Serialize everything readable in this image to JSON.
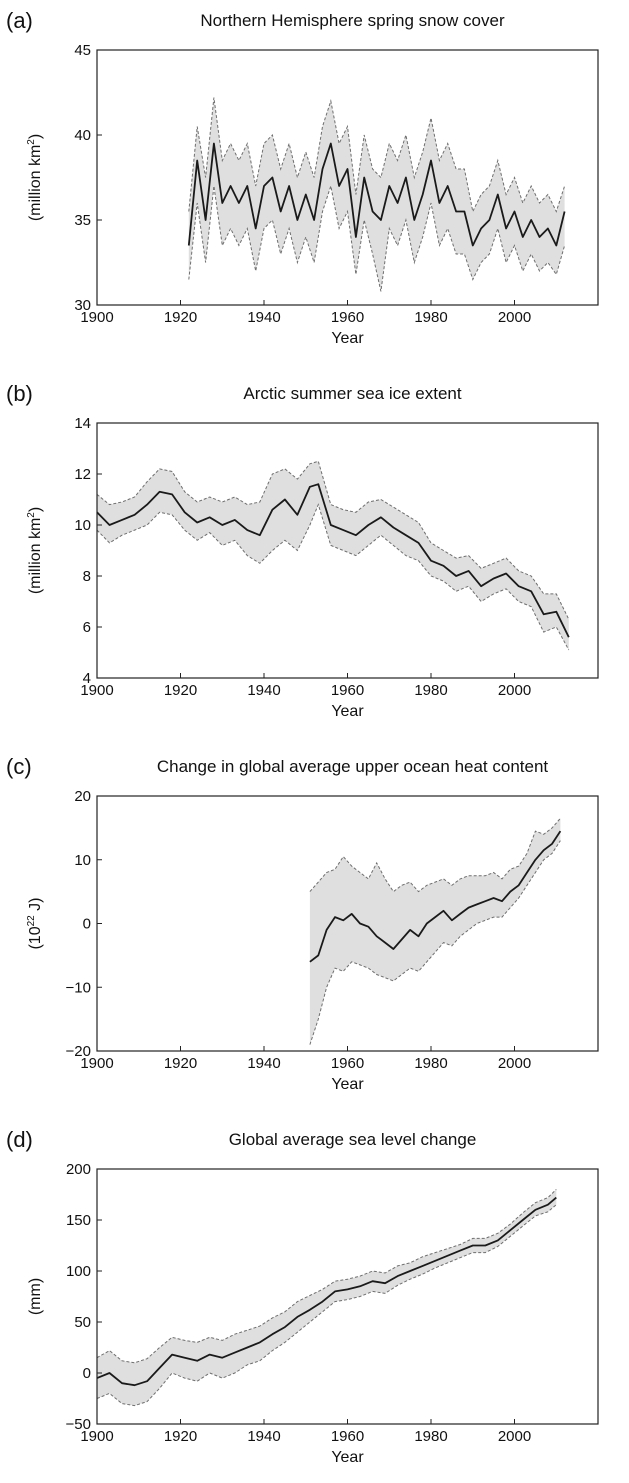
{
  "chart_data": [
    {
      "type": "line",
      "panel": "(a)",
      "title": "Northern Hemisphere spring snow cover",
      "xlabel": "Year",
      "ylabel": "(million km²)",
      "ylabel_base": "(million km",
      "ylabel_sup": "2",
      "ylabel_tail": ")",
      "xlim": [
        1900,
        2020
      ],
      "ylim": [
        30,
        45
      ],
      "xticks": [
        1900,
        1920,
        1940,
        1960,
        1980,
        2000
      ],
      "yticks": [
        30,
        35,
        40,
        45
      ],
      "grid": false,
      "series": [
        {
          "x": [
            1922,
            1924,
            1926,
            1928,
            1930,
            1932,
            1934,
            1936,
            1938,
            1940,
            1942,
            1944,
            1946,
            1948,
            1950,
            1952,
            1954,
            1956,
            1958,
            1960,
            1962,
            1964,
            1966,
            1968,
            1970,
            1972,
            1974,
            1976,
            1978,
            1980,
            1982,
            1984,
            1986,
            1988,
            1990,
            1992,
            1994,
            1996,
            1998,
            2000,
            2002,
            2004,
            2006,
            2008,
            2010,
            2012
          ],
          "y": [
            33.5,
            38.5,
            35.0,
            39.5,
            36.0,
            37.0,
            36.0,
            37.0,
            34.5,
            37.0,
            37.5,
            35.5,
            37.0,
            35.0,
            36.5,
            35.0,
            38.0,
            39.5,
            37.0,
            38.0,
            34.0,
            37.5,
            35.5,
            35.0,
            37.0,
            36.0,
            37.5,
            35.0,
            36.5,
            38.5,
            36.0,
            37.0,
            35.5,
            35.5,
            33.5,
            34.5,
            35.0,
            36.5,
            34.5,
            35.5,
            34.0,
            35.0,
            34.0,
            34.5,
            33.5,
            35.5
          ],
          "lower": [
            31.5,
            36.0,
            32.5,
            37.0,
            33.5,
            34.5,
            33.5,
            34.5,
            32.0,
            34.5,
            35.0,
            33.0,
            34.5,
            32.5,
            34.0,
            32.5,
            35.5,
            37.0,
            34.5,
            35.5,
            31.8,
            35.0,
            33.0,
            30.8,
            34.5,
            33.5,
            35.0,
            32.5,
            34.0,
            36.0,
            33.5,
            34.5,
            33.0,
            33.0,
            31.5,
            32.5,
            33.0,
            34.5,
            32.5,
            33.5,
            32.0,
            33.0,
            32.0,
            32.5,
            31.8,
            33.5
          ],
          "upper": [
            35.5,
            40.5,
            37.5,
            42.2,
            38.5,
            39.5,
            38.5,
            39.5,
            37.0,
            39.5,
            40.0,
            38.0,
            39.5,
            37.5,
            39.0,
            37.5,
            40.5,
            42.0,
            39.5,
            40.5,
            36.5,
            40.0,
            38.0,
            37.5,
            39.5,
            38.5,
            40.0,
            37.5,
            39.0,
            41.0,
            38.5,
            39.5,
            38.0,
            38.0,
            35.5,
            36.5,
            37.0,
            38.5,
            36.5,
            37.5,
            36.0,
            37.0,
            36.0,
            36.5,
            35.5,
            37.0
          ]
        }
      ]
    },
    {
      "type": "line",
      "panel": "(b)",
      "title": "Arctic summer sea ice extent",
      "xlabel": "Year",
      "ylabel": "(million km²)",
      "ylabel_base": "(million km",
      "ylabel_sup": "2",
      "ylabel_tail": ")",
      "xlim": [
        1900,
        2020
      ],
      "ylim": [
        4,
        14
      ],
      "xticks": [
        1900,
        1920,
        1940,
        1960,
        1980,
        2000
      ],
      "yticks": [
        4,
        6,
        8,
        10,
        12,
        14
      ],
      "grid": false,
      "series": [
        {
          "x": [
            1900,
            1903,
            1906,
            1909,
            1912,
            1915,
            1918,
            1921,
            1924,
            1927,
            1930,
            1933,
            1936,
            1939,
            1942,
            1945,
            1948,
            1951,
            1953,
            1956,
            1959,
            1962,
            1965,
            1968,
            1971,
            1974,
            1977,
            1980,
            1983,
            1986,
            1989,
            1992,
            1995,
            1998,
            2001,
            2004,
            2007,
            2010,
            2013
          ],
          "y": [
            10.5,
            10.0,
            10.2,
            10.4,
            10.8,
            11.3,
            11.2,
            10.5,
            10.1,
            10.3,
            10.0,
            10.2,
            9.8,
            9.6,
            10.6,
            11.0,
            10.4,
            11.5,
            11.6,
            10.0,
            9.8,
            9.6,
            10.0,
            10.3,
            9.9,
            9.6,
            9.3,
            8.6,
            8.4,
            8.0,
            8.2,
            7.6,
            7.9,
            8.1,
            7.6,
            7.4,
            6.5,
            6.6,
            5.6
          ],
          "lower": [
            9.8,
            9.3,
            9.6,
            9.8,
            10.0,
            10.5,
            10.4,
            9.8,
            9.4,
            9.7,
            9.2,
            9.4,
            8.8,
            8.5,
            9.0,
            9.4,
            9.0,
            10.0,
            10.8,
            9.2,
            9.0,
            8.8,
            9.2,
            9.6,
            9.2,
            8.8,
            8.6,
            8.0,
            7.8,
            7.4,
            7.6,
            7.0,
            7.3,
            7.5,
            7.0,
            6.8,
            5.8,
            6.0,
            5.1
          ],
          "upper": [
            11.2,
            10.8,
            10.9,
            11.1,
            11.7,
            12.2,
            12.1,
            11.3,
            10.9,
            11.1,
            10.9,
            11.1,
            10.8,
            10.9,
            12.0,
            12.2,
            11.8,
            12.4,
            12.5,
            10.8,
            10.6,
            10.5,
            10.9,
            11.0,
            10.7,
            10.4,
            10.1,
            9.3,
            9.0,
            8.7,
            8.8,
            8.3,
            8.5,
            8.7,
            8.2,
            8.0,
            7.3,
            7.3,
            6.3
          ]
        }
      ]
    },
    {
      "type": "line",
      "panel": "(c)",
      "title": "Change in global average upper ocean heat content",
      "xlabel": "Year",
      "ylabel": "(10²² J)",
      "ylabel_base": "(10",
      "ylabel_sup": "22",
      "ylabel_tail": " J)",
      "xlim": [
        1900,
        2020
      ],
      "ylim": [
        -20,
        20
      ],
      "xticks": [
        1900,
        1920,
        1940,
        1960,
        1980,
        2000
      ],
      "xtick_labels": [
        "1900",
        "1920",
        "1940",
        "1960",
        "1980",
        "2000"
      ],
      "yticks": [
        -20,
        -10,
        0,
        10,
        20
      ],
      "ytick_labels": [
        "−20",
        "−10",
        "0",
        "10",
        "20"
      ],
      "grid": false,
      "series": [
        {
          "x": [
            1951,
            1953,
            1955,
            1957,
            1959,
            1961,
            1963,
            1965,
            1967,
            1969,
            1971,
            1973,
            1975,
            1977,
            1979,
            1981,
            1983,
            1985,
            1987,
            1989,
            1991,
            1993,
            1995,
            1997,
            1999,
            2001,
            2003,
            2005,
            2007,
            2009,
            2011
          ],
          "y": [
            -6.0,
            -5.0,
            -1.0,
            1.0,
            0.5,
            1.5,
            0.0,
            -0.5,
            -2.0,
            -3.0,
            -4.0,
            -2.5,
            -1.0,
            -2.0,
            0.0,
            1.0,
            2.0,
            0.5,
            1.5,
            2.5,
            3.0,
            3.5,
            4.0,
            3.5,
            5.0,
            6.0,
            8.0,
            10.0,
            11.5,
            12.5,
            14.5
          ],
          "lower": [
            -19.0,
            -15.0,
            -10.0,
            -7.0,
            -7.5,
            -6.0,
            -6.5,
            -7.0,
            -8.0,
            -8.5,
            -9.0,
            -8.0,
            -7.0,
            -7.5,
            -6.0,
            -4.5,
            -3.0,
            -3.5,
            -2.0,
            -1.0,
            0.0,
            0.5,
            1.0,
            1.0,
            2.5,
            4.0,
            6.0,
            8.0,
            10.0,
            11.0,
            13.0
          ],
          "upper": [
            5.0,
            6.5,
            8.0,
            8.5,
            10.5,
            9.0,
            8.0,
            7.0,
            9.5,
            7.0,
            5.0,
            6.0,
            6.5,
            5.0,
            6.0,
            6.5,
            7.0,
            6.0,
            7.0,
            7.5,
            7.5,
            7.5,
            8.0,
            7.0,
            8.5,
            9.0,
            11.0,
            14.5,
            14.0,
            15.0,
            16.5
          ]
        }
      ]
    },
    {
      "type": "line",
      "panel": "(d)",
      "title": "Global average sea level change",
      "xlabel": "Year",
      "ylabel": "(mm)",
      "ylabel_base": "(mm)",
      "ylabel_sup": "",
      "ylabel_tail": "",
      "xlim": [
        1900,
        2020
      ],
      "ylim": [
        -50,
        200
      ],
      "xticks": [
        1900,
        1920,
        1940,
        1960,
        1980,
        2000
      ],
      "yticks": [
        -50,
        0,
        50,
        100,
        150,
        200
      ],
      "ytick_labels": [
        "−50",
        "0",
        "50",
        "100",
        "150",
        "200"
      ],
      "grid": false,
      "series": [
        {
          "x": [
            1900,
            1903,
            1906,
            1909,
            1912,
            1915,
            1918,
            1921,
            1924,
            1927,
            1930,
            1933,
            1936,
            1939,
            1942,
            1945,
            1948,
            1951,
            1954,
            1957,
            1960,
            1963,
            1966,
            1969,
            1972,
            1975,
            1978,
            1981,
            1984,
            1987,
            1990,
            1993,
            1996,
            1999,
            2002,
            2005,
            2008,
            2010
          ],
          "y": [
            -5,
            0,
            -10,
            -12,
            -8,
            5,
            18,
            15,
            12,
            18,
            15,
            20,
            25,
            30,
            38,
            45,
            55,
            62,
            70,
            80,
            82,
            85,
            90,
            88,
            95,
            100,
            105,
            110,
            115,
            120,
            125,
            125,
            130,
            140,
            150,
            160,
            165,
            172
          ],
          "lower": [
            -25,
            -20,
            -30,
            -32,
            -28,
            -15,
            0,
            -5,
            -8,
            0,
            -5,
            0,
            8,
            12,
            22,
            30,
            40,
            50,
            60,
            70,
            72,
            75,
            80,
            78,
            86,
            92,
            97,
            103,
            108,
            113,
            118,
            118,
            124,
            134,
            144,
            154,
            158,
            165
          ],
          "upper": [
            15,
            22,
            12,
            10,
            14,
            25,
            35,
            32,
            30,
            35,
            32,
            38,
            42,
            46,
            54,
            60,
            70,
            76,
            82,
            90,
            92,
            95,
            100,
            98,
            105,
            108,
            114,
            118,
            122,
            126,
            132,
            132,
            137,
            146,
            157,
            167,
            172,
            180
          ]
        }
      ]
    }
  ]
}
